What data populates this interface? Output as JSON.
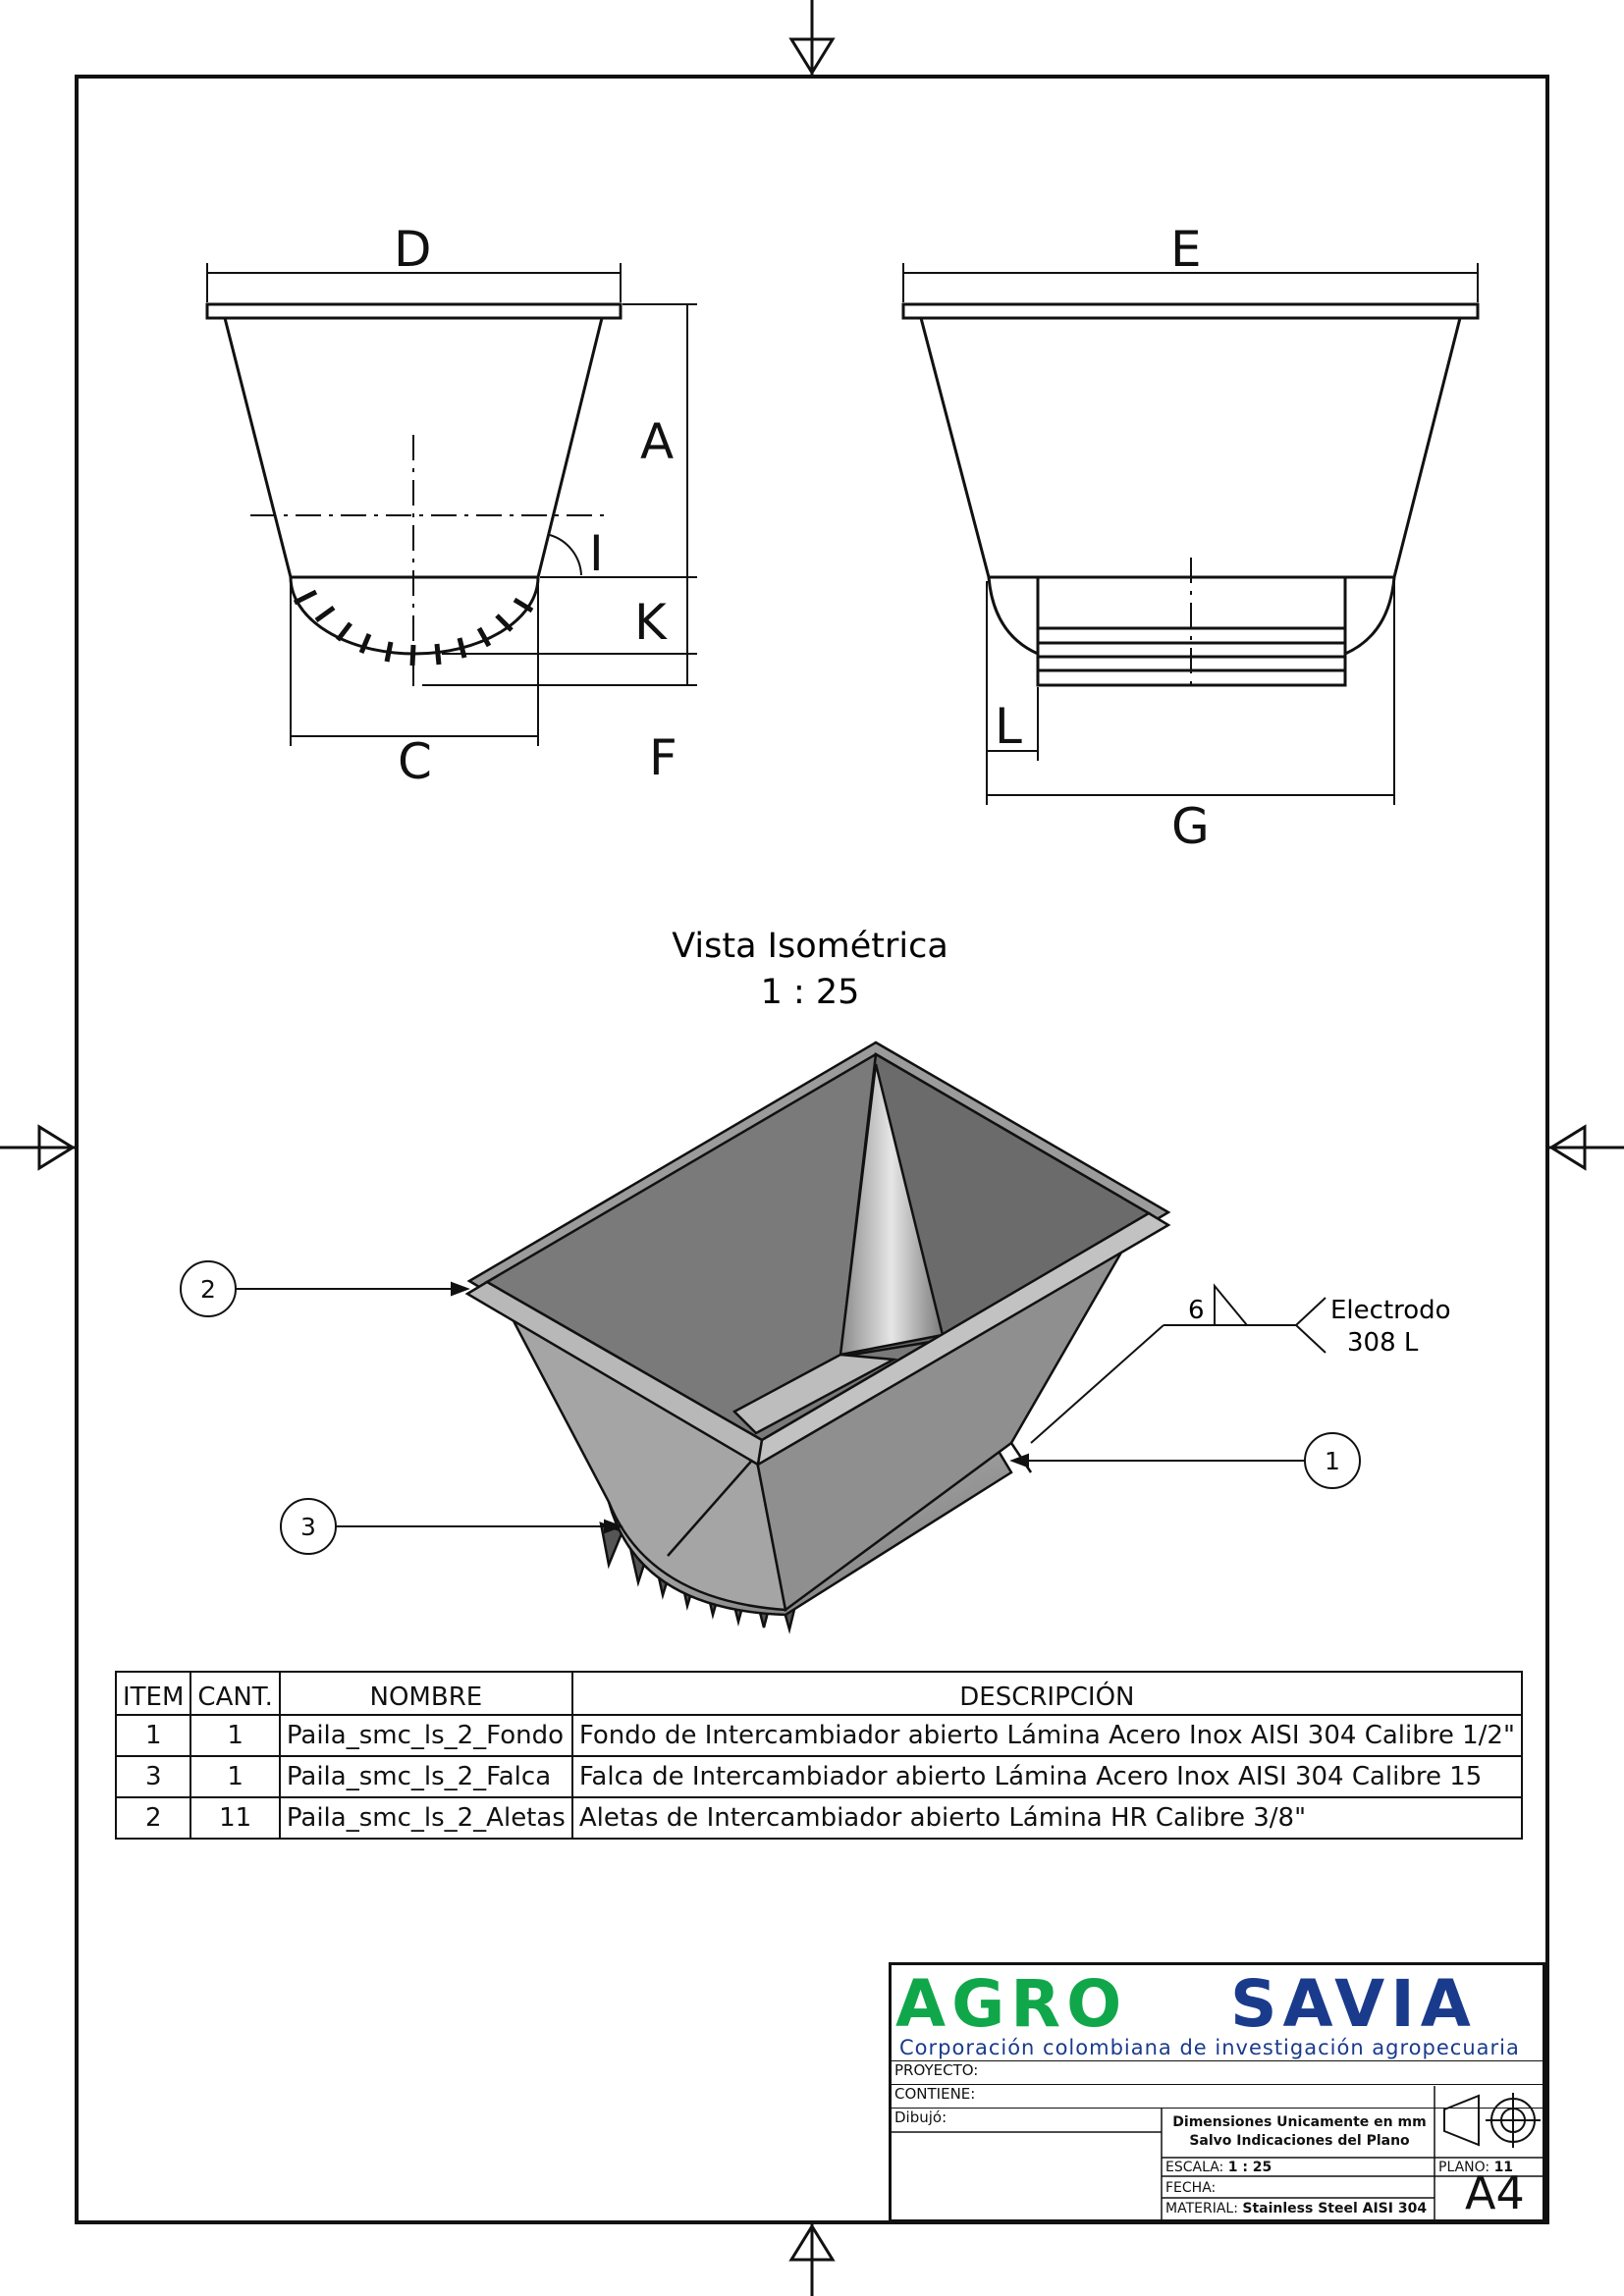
{
  "drawing": {
    "view_labels": {
      "iso_title": "Vista Isométrica",
      "iso_scale": "1 : 25"
    },
    "dimensions": {
      "front": [
        "D",
        "A",
        "I",
        "K",
        "F",
        "C"
      ],
      "side": [
        "E",
        "L",
        "G"
      ]
    },
    "balloons": [
      "1",
      "2",
      "3"
    ],
    "weld": {
      "size": "6",
      "note_line1": "Electrodo",
      "note_line2": "308 L"
    }
  },
  "bom": {
    "headers": [
      "ITEM",
      "CANT.",
      "NOMBRE",
      "DESCRIPCIÓN"
    ],
    "rows": [
      [
        "1",
        "1",
        "Paila_smc_ls_2_Fondo",
        "Fondo de Intercambiador abierto Lámina Acero Inox AISI 304 Calibre 1/2\""
      ],
      [
        "3",
        "1",
        "Paila_smc_ls_2_Falca",
        "Falca de Intercambiador abierto Lámina Acero Inox AISI 304 Calibre 15"
      ],
      [
        "2",
        "11",
        "Paila_smc_ls_2_Aletas",
        "Aletas de Intercambiador abierto Lámina HR Calibre 3/8\""
      ]
    ]
  },
  "title_block": {
    "logo_left": "AGRO",
    "logo_right": "SAVIA",
    "tagline": "Corporación colombiana de investigación agropecuaria",
    "proyecto_label": "PROYECTO:",
    "contiene_label": "CONTIENE:",
    "dibujo_label": "Dibujó:",
    "note_line1": "Dimensiones Unicamente en mm",
    "note_line2": "Salvo Indicaciones del Plano",
    "escala_label": "ESCALA:",
    "escala_value": "1 : 25",
    "plano_label": "PLANO:",
    "plano_value": "11",
    "fecha_label": "FECHA:",
    "material_label": "MATERIAL:",
    "material_value": "Stainless Steel AISI 304",
    "sheet_size": "A4"
  },
  "colors": {
    "logo_green": "#10a74a",
    "logo_blue": "#1a3b8c",
    "metal_dark": "#6e6e6e",
    "metal_mid": "#9a9a9a",
    "metal_light": "#cfcfcf"
  }
}
